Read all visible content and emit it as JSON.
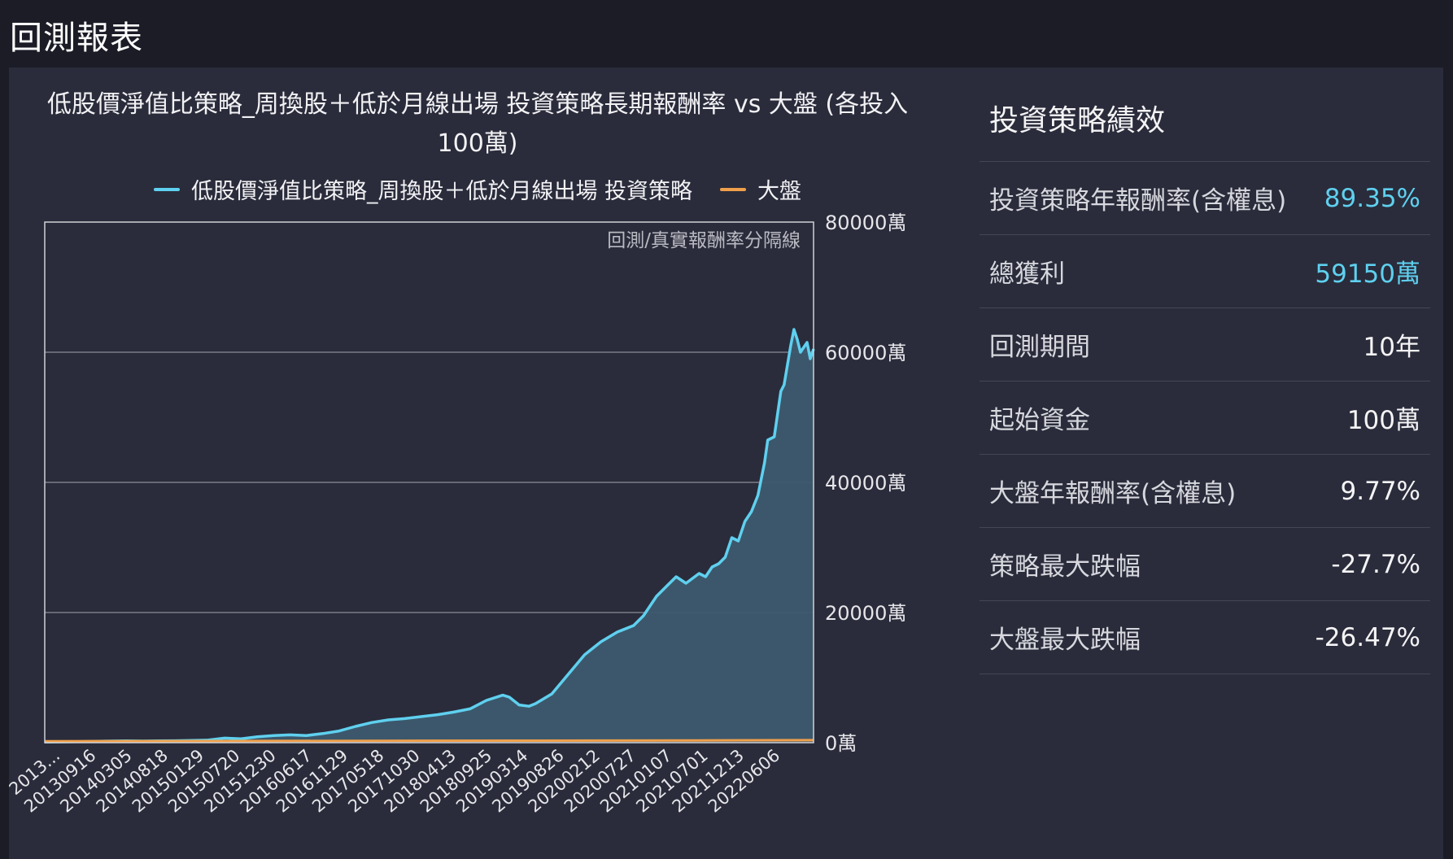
{
  "page": {
    "title": "回測報表"
  },
  "colors": {
    "strategy": "#5fd0ef",
    "market": "#f0a04b",
    "area": "#3d5a6e",
    "grid": "#8a8c96",
    "frame": "#d0d2d8",
    "accent": "#5fd0ef"
  },
  "chart_data": {
    "type": "area",
    "title": "低股價淨值比策略_周換股＋低於月線出場 投資策略長期報酬率 vs 大盤 (各投入100萬)",
    "annotation": "回測/真實報酬率分隔線",
    "y_unit": "萬",
    "ylim": [
      0,
      80000
    ],
    "y_ticks": [
      "80000萬",
      "60000萬",
      "40000萬",
      "20000萬",
      "0萬"
    ],
    "y_tick_values": [
      80000,
      60000,
      40000,
      20000,
      0
    ],
    "grid": true,
    "legend_position": "top-center",
    "x_ticks": [
      "2013...",
      "20130916",
      "20140305",
      "20140818",
      "20150129",
      "20150720",
      "20151230",
      "20160617",
      "20161129",
      "20170518",
      "20171030",
      "20180413",
      "20180925",
      "20190314",
      "20190826",
      "20200212",
      "20200727",
      "20210107",
      "20210701",
      "20211213",
      "20220606"
    ],
    "series": [
      {
        "name": "低股價淨值比策略_周換股＋低於月線出場 投資策略",
        "role": "strategy",
        "x": [
          0,
          0.5,
          1,
          1.5,
          2,
          2.5,
          3,
          3.5,
          4,
          4.5,
          5,
          5.5,
          6,
          6.5,
          7,
          7.5,
          8,
          8.5,
          9,
          9.5,
          10,
          10.5,
          11,
          11.5,
          12,
          12.5,
          13,
          13.5,
          14,
          14.2,
          14.5,
          14.8,
          15,
          15.5,
          16,
          16.5,
          17,
          17.5,
          18,
          18.3,
          18.7,
          19,
          19.3,
          19.6,
          20,
          20.2,
          20.4,
          20.6,
          20.8,
          21,
          21.2,
          21.4,
          21.6,
          21.8,
          22,
          22.1,
          22.3,
          22.5
        ],
        "values": [
          100,
          130,
          150,
          200,
          250,
          280,
          250,
          280,
          300,
          350,
          400,
          700,
          600,
          900,
          1100,
          1200,
          1100,
          1400,
          1800,
          2500,
          3100,
          3500,
          3700,
          4000,
          4300,
          4700,
          5200,
          6500,
          7300,
          7000,
          5800,
          5600,
          6000,
          7500,
          10500,
          13500,
          15500,
          17000,
          18000,
          19500,
          22500,
          24000,
          25500,
          24500,
          26000,
          25500,
          27000,
          27500,
          28500,
          31500,
          31000,
          34000,
          35500,
          38000,
          43000,
          46500,
          47000,
          54000
        ],
        "tail_x": [
          22.6,
          22.8,
          22.9,
          23.0,
          23.1,
          23.3,
          23.4,
          23.5
        ],
        "tail_values": [
          55000,
          61000,
          63500,
          62000,
          60000,
          61500,
          59000,
          60500
        ]
      },
      {
        "name": "大盤",
        "role": "market",
        "x": [
          0,
          5,
          10,
          15,
          20,
          23.5
        ],
        "values": [
          100,
          130,
          160,
          190,
          230,
          260
        ]
      }
    ]
  },
  "stats": {
    "title": "投資策略績效",
    "rows": [
      {
        "label": "投資策略年報酬率(含權息)",
        "value": "89.35%",
        "accent": true
      },
      {
        "label": "總獲利",
        "value": "59150萬",
        "accent": true
      },
      {
        "label": "回測期間",
        "value": "10年",
        "accent": false
      },
      {
        "label": "起始資金",
        "value": "100萬",
        "accent": false
      },
      {
        "label": "大盤年報酬率(含權息)",
        "value": "9.77%",
        "accent": false
      },
      {
        "label": "策略最大跌幅",
        "value": "-27.7%",
        "accent": false
      },
      {
        "label": "大盤最大跌幅",
        "value": "-26.47%",
        "accent": false
      }
    ]
  }
}
